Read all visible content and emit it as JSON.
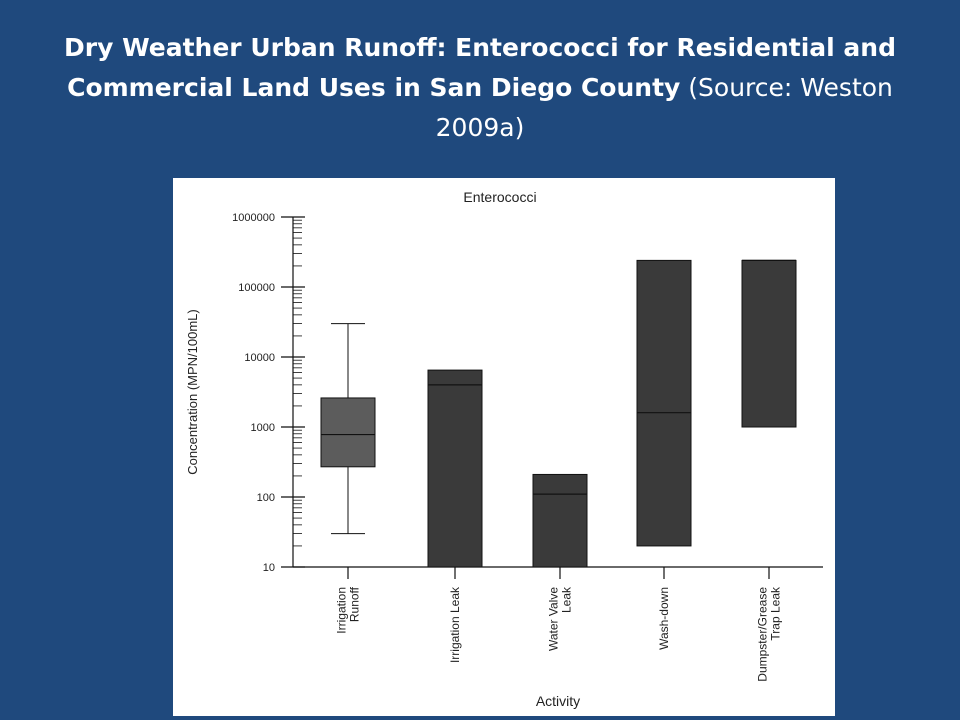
{
  "slide": {
    "title_bold": "Dry Weather Urban Runoff: Enterococci for Residential and Commercial Land Uses in San Diego County",
    "title_source": "(Source: Weston 2009a)"
  },
  "chart_data": {
    "type": "boxplot",
    "title": "Enterococci",
    "xlabel": "Activity",
    "ylabel": "Concentration (MPN/100mL)",
    "yscale": "log",
    "ylim": [
      10,
      1000000
    ],
    "yticks": [
      {
        "value": 10,
        "label": "10"
      },
      {
        "value": 100,
        "label": "100"
      },
      {
        "value": 1000,
        "label": "1000"
      },
      {
        "value": 10000,
        "label": "10000"
      },
      {
        "value": 100000,
        "label": "100000"
      },
      {
        "value": 1000000,
        "label": "1000000"
      }
    ],
    "categories": [
      {
        "label": [
          "Irrigation",
          "Runoff"
        ]
      },
      {
        "label": [
          "Irrigation Leak"
        ]
      },
      {
        "label": [
          "Water Valve",
          "Leak"
        ]
      },
      {
        "label": [
          "Wash-down"
        ]
      },
      {
        "label": [
          "Dumpster/Grease",
          "Trap Leak"
        ]
      }
    ],
    "boxes": [
      {
        "category": "Irrigation Runoff",
        "whisker_low": 30,
        "q1": 270,
        "median": 780,
        "q3": 2600,
        "whisker_high": 30000
      },
      {
        "category": "Irrigation Leak",
        "q1": 10,
        "median": 4000,
        "q3": 6500
      },
      {
        "category": "Water Valve Leak",
        "q1": 10,
        "median": 110,
        "q3": 210
      },
      {
        "category": "Wash-down",
        "q1": 20,
        "median": 1600,
        "q3": 240000
      },
      {
        "category": "Dumpster/Grease Trap Leak",
        "q1": 1000,
        "median": 240000,
        "q3": 240000
      }
    ],
    "colors": {
      "box_fill_filled": "#3a3a3a",
      "box_fill_light": "#5c5c5c",
      "line": "#111111"
    },
    "grid": false,
    "legend": "none"
  }
}
